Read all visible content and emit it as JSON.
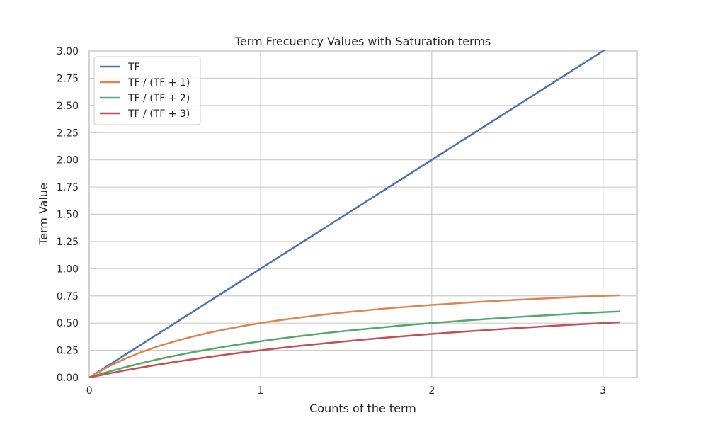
{
  "chart_data": {
    "type": "line",
    "title": "Term Frecuency Values with Saturation terms",
    "xlabel": "Counts of the term",
    "ylabel": "Term Value",
    "xlim": [
      -0.005,
      3.2
    ],
    "ylim": [
      0,
      3.0
    ],
    "x_ticks": [
      0,
      1,
      2,
      3
    ],
    "x_tick_labels": [
      "0",
      "1",
      "2",
      "3"
    ],
    "y_ticks": [
      0,
      0.25,
      0.5,
      0.75,
      1.0,
      1.25,
      1.5,
      1.75,
      2.0,
      2.25,
      2.5,
      2.75,
      3.0
    ],
    "y_tick_labels": [
      "0.00",
      "0.25",
      "0.50",
      "0.75",
      "1.00",
      "1.25",
      "1.50",
      "1.75",
      "2.00",
      "2.25",
      "2.50",
      "2.75",
      "3.00"
    ],
    "grid": true,
    "legend_position": "top-left",
    "x": [
      0,
      0.1,
      0.2,
      0.3,
      0.4,
      0.5,
      0.6,
      0.7,
      0.8,
      0.9,
      1.0,
      1.1,
      1.2,
      1.3,
      1.4,
      1.5,
      1.6,
      1.7,
      1.8,
      1.9,
      2.0,
      2.1,
      2.2,
      2.3,
      2.4,
      2.5,
      2.6,
      2.7,
      2.8,
      2.9,
      3.0,
      3.1
    ],
    "series": [
      {
        "name": "TF",
        "color": "#4c72b0",
        "values": [
          0,
          0.1,
          0.2,
          0.3,
          0.4,
          0.5,
          0.6,
          0.7,
          0.8,
          0.9,
          1.0,
          1.1,
          1.2,
          1.3,
          1.4,
          1.5,
          1.6,
          1.7,
          1.8,
          1.9,
          2.0,
          2.1,
          2.2,
          2.3,
          2.4,
          2.5,
          2.6,
          2.7,
          2.8,
          2.9,
          3.0,
          3.1
        ]
      },
      {
        "name": "TF / (TF + 1)",
        "color": "#dd8452",
        "values": [
          0,
          0.091,
          0.167,
          0.231,
          0.286,
          0.333,
          0.375,
          0.412,
          0.444,
          0.474,
          0.5,
          0.524,
          0.545,
          0.565,
          0.583,
          0.6,
          0.615,
          0.63,
          0.643,
          0.655,
          0.667,
          0.677,
          0.688,
          0.697,
          0.706,
          0.714,
          0.722,
          0.73,
          0.737,
          0.744,
          0.75,
          0.756
        ]
      },
      {
        "name": "TF / (TF + 2)",
        "color": "#55a868",
        "values": [
          0,
          0.048,
          0.091,
          0.13,
          0.167,
          0.2,
          0.231,
          0.259,
          0.286,
          0.31,
          0.333,
          0.355,
          0.375,
          0.394,
          0.412,
          0.429,
          0.444,
          0.459,
          0.474,
          0.487,
          0.5,
          0.512,
          0.524,
          0.535,
          0.545,
          0.556,
          0.565,
          0.574,
          0.583,
          0.592,
          0.6,
          0.608
        ]
      },
      {
        "name": "TF / (TF + 3)",
        "color": "#c44e52",
        "values": [
          0,
          0.032,
          0.063,
          0.091,
          0.118,
          0.143,
          0.167,
          0.189,
          0.211,
          0.231,
          0.25,
          0.268,
          0.286,
          0.302,
          0.318,
          0.333,
          0.348,
          0.362,
          0.375,
          0.388,
          0.4,
          0.412,
          0.423,
          0.434,
          0.444,
          0.455,
          0.464,
          0.474,
          0.483,
          0.492,
          0.5,
          0.508
        ]
      }
    ]
  }
}
